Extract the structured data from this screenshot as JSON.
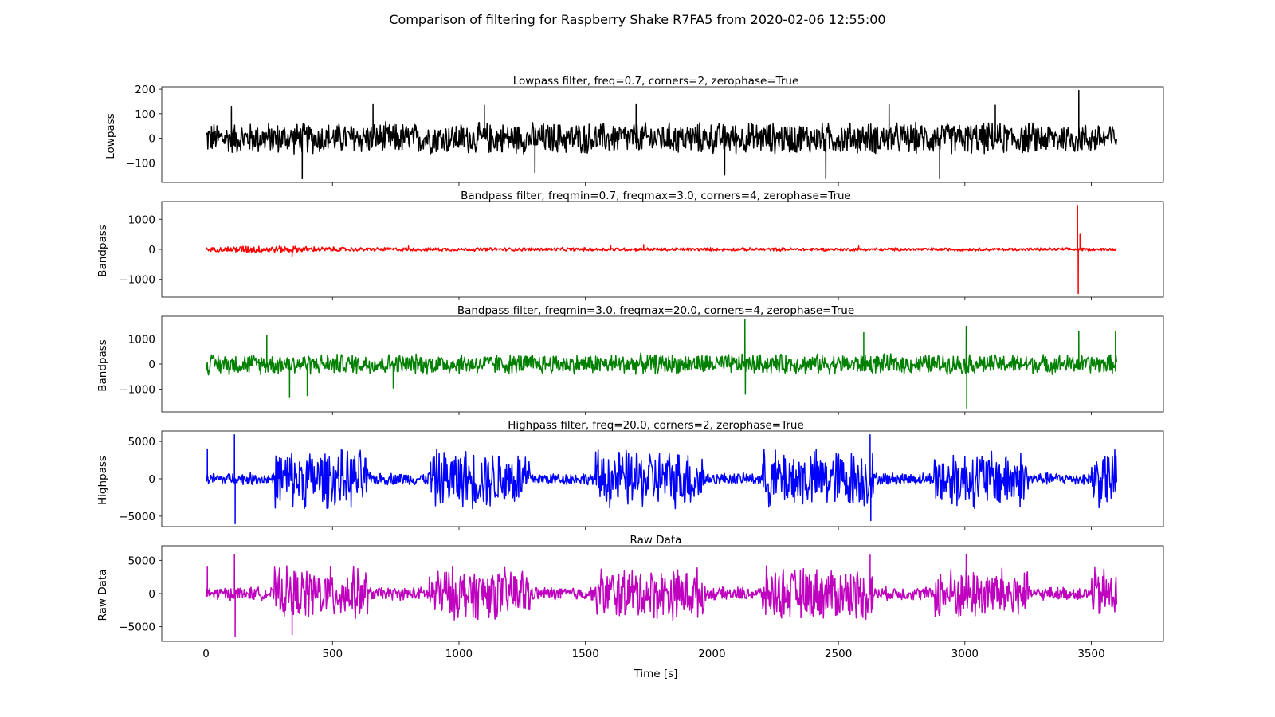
{
  "figure": {
    "suptitle": "Comparison of filtering for Raspberry Shake R7FA5 from 2020-02-06 12:55:00",
    "xlabel": "Time [s]"
  },
  "chart_data": [
    {
      "type": "line",
      "title": "Lowpass filter, freq=0.7, corners=2, zerophase=True",
      "ylabel": "Lowpass",
      "color": "#000000",
      "xlim": [
        -175,
        3785
      ],
      "ylim": [
        -180,
        210
      ],
      "yticks": [
        -100,
        0,
        100,
        200
      ],
      "ytick_labels": [
        "−100",
        "0",
        "100",
        "200"
      ],
      "xticks": [
        0,
        500,
        1000,
        1500,
        2000,
        2500,
        3000,
        3500
      ],
      "show_xtick_labels": false,
      "envelope": [
        [
          0,
          70
        ],
        [
          3600,
          70
        ]
      ],
      "spikes": [
        [
          100,
          130
        ],
        [
          380,
          -165
        ],
        [
          660,
          140
        ],
        [
          1100,
          135
        ],
        [
          1300,
          -140
        ],
        [
          1700,
          140
        ],
        [
          2050,
          -150
        ],
        [
          2450,
          -165
        ],
        [
          2700,
          140
        ],
        [
          2900,
          -165
        ],
        [
          3120,
          135
        ],
        [
          3450,
          195
        ]
      ]
    },
    {
      "type": "line",
      "title": "Bandpass filter, freqmin=0.7, freqmax=3.0, corners=4, zerophase=True",
      "ylabel": "Bandpass",
      "color": "#ff0000",
      "xlim": [
        -175,
        3785
      ],
      "ylim": [
        -1590,
        1590
      ],
      "yticks": [
        -1000,
        0,
        1000
      ],
      "ytick_labels": [
        "−1000",
        "0",
        "1000"
      ],
      "xticks": [
        0,
        500,
        1000,
        1500,
        2000,
        2500,
        3000,
        3500
      ],
      "show_xtick_labels": false,
      "envelope": [
        [
          0,
          60
        ],
        [
          150,
          150
        ],
        [
          350,
          120
        ],
        [
          600,
          70
        ],
        [
          3600,
          55
        ]
      ],
      "spikes": [
        [
          340,
          -230
        ],
        [
          800,
          110
        ],
        [
          1600,
          130
        ],
        [
          1730,
          160
        ],
        [
          2580,
          110
        ],
        [
          3445,
          1460
        ],
        [
          3448,
          -1470
        ],
        [
          3455,
          500
        ]
      ]
    },
    {
      "type": "line",
      "title": "Bandpass filter, freqmin=3.0, freqmax=20.0, corners=4, zerophase=True",
      "ylabel": "Bandpass",
      "color": "#008000",
      "xlim": [
        -175,
        3785
      ],
      "ylim": [
        -1900,
        1900
      ],
      "yticks": [
        -1000,
        0,
        1000
      ],
      "ytick_labels": [
        "−1000",
        "0",
        "1000"
      ],
      "xticks": [
        0,
        500,
        1000,
        1500,
        2000,
        2500,
        3000,
        3500
      ],
      "show_xtick_labels": false,
      "envelope": [
        [
          0,
          450
        ],
        [
          3600,
          420
        ]
      ],
      "spikes": [
        [
          240,
          1150
        ],
        [
          330,
          -1300
        ],
        [
          400,
          -1250
        ],
        [
          740,
          -950
        ],
        [
          2130,
          1780
        ],
        [
          2132,
          -1200
        ],
        [
          2600,
          1250
        ],
        [
          3005,
          1500
        ],
        [
          3007,
          -1750
        ],
        [
          3450,
          1300
        ],
        [
          3595,
          1300
        ]
      ]
    },
    {
      "type": "line",
      "title": "Highpass filter, freq=20.0, corners=2, zerophase=True",
      "ylabel": "Highpass",
      "color": "#0000ff",
      "xlim": [
        -175,
        3785
      ],
      "ylim": [
        -6400,
        6400
      ],
      "yticks": [
        -5000,
        0,
        5000
      ],
      "ytick_labels": [
        "−5000",
        "0",
        "5000"
      ],
      "xticks": [
        0,
        500,
        1000,
        1500,
        2000,
        2500,
        3000,
        3500
      ],
      "show_xtick_labels": false,
      "bursts": [
        [
          270,
          640
        ],
        [
          880,
          1280
        ],
        [
          1540,
          1970
        ],
        [
          2200,
          2640
        ],
        [
          2880,
          3250
        ],
        [
          3500,
          3600
        ]
      ],
      "burst_amp": 4300,
      "quiet_amp": 900,
      "spikes": [
        [
          5,
          4000
        ],
        [
          112,
          5900
        ],
        [
          115,
          -6000
        ],
        [
          2625,
          5900
        ],
        [
          2628,
          -5600
        ]
      ]
    },
    {
      "type": "line",
      "title": "Raw Data",
      "ylabel": "Raw Data",
      "color": "#bf00bf",
      "xlim": [
        -175,
        3785
      ],
      "ylim": [
        -7200,
        7200
      ],
      "yticks": [
        -5000,
        0,
        5000
      ],
      "ytick_labels": [
        "−5000",
        "0",
        "5000"
      ],
      "xticks": [
        0,
        500,
        1000,
        1500,
        2000,
        2500,
        3000,
        3500
      ],
      "xtick_labels": [
        "0",
        "500",
        "1000",
        "1500",
        "2000",
        "2500",
        "3000",
        "3500"
      ],
      "show_xtick_labels": true,
      "bursts": [
        [
          270,
          640
        ],
        [
          880,
          1280
        ],
        [
          1540,
          1970
        ],
        [
          2200,
          2640
        ],
        [
          2880,
          3250
        ],
        [
          3500,
          3600
        ]
      ],
      "burst_amp": 4300,
      "quiet_amp": 1100,
      "spikes": [
        [
          5,
          4000
        ],
        [
          112,
          5900
        ],
        [
          115,
          -6500
        ],
        [
          340,
          -6200
        ],
        [
          2625,
          5800
        ],
        [
          3005,
          5900
        ]
      ]
    }
  ]
}
